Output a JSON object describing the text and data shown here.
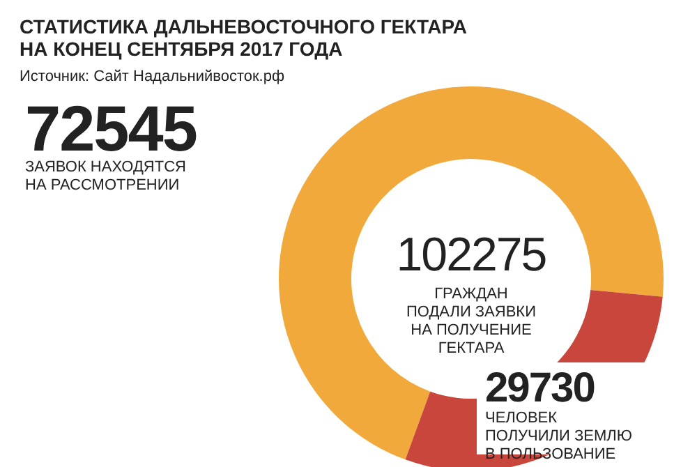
{
  "chart_data": {
    "type": "donut",
    "title": "СТАТИСТИКА ДАЛЬНЕВОСТОЧНОГО ГЕКТАРА\nНА КОНЕЦ СЕНТЯБРЯ 2017 ГОДА",
    "subtitle": "Источник: Сайт Надальнийвосток.рф",
    "categories": [
      "ЗАЯВОК НАХОДЯТСЯ\nНА РАССМОТРЕНИИ",
      "ЧЕЛОВЕК\nПОЛУЧИЛИ ЗЕМЛЮ\nВ ПОЛЬЗОВАНИЕ"
    ],
    "values": [
      72545,
      29730
    ],
    "colors": [
      "#f2a93b",
      "#c9463d"
    ],
    "data_labels": true,
    "annotations": [
      "102275",
      "ГРАЖДАН\nПОДАЛИ ЗАЯВКИ\nНА ПОЛУЧЕНИЕ\nГЕКТАРА"
    ]
  }
}
